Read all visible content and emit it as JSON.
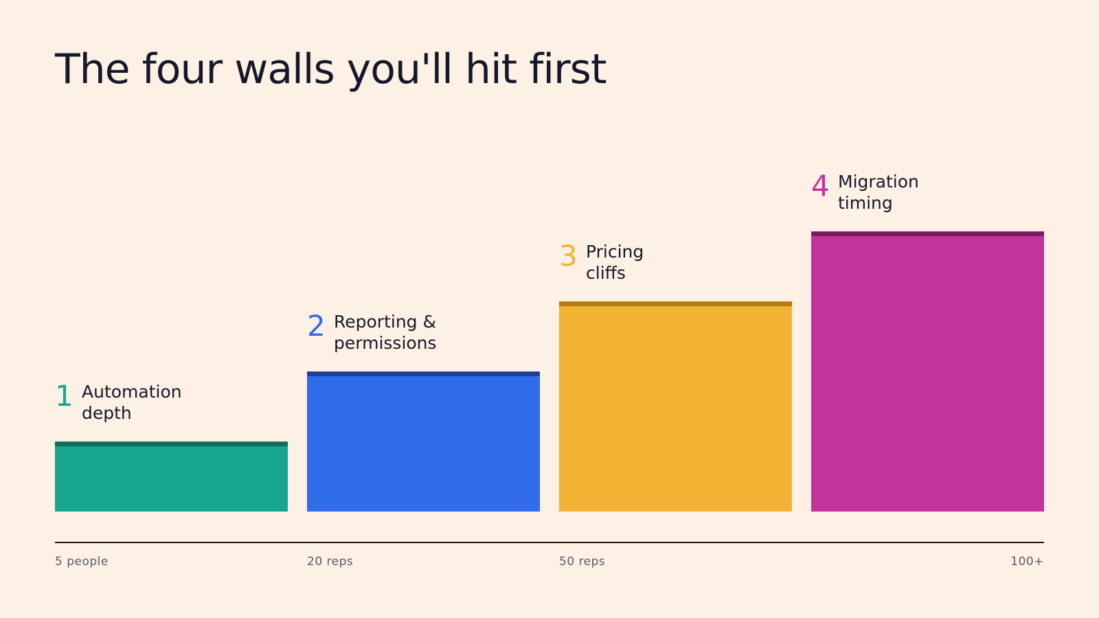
{
  "title": "The four walls you'll hit first",
  "chart_data": {
    "type": "bar",
    "title": "The four walls you'll hit first",
    "categories": [
      "Automation depth",
      "Reporting & permissions",
      "Pricing cliffs",
      "Migration timing"
    ],
    "bars": [
      {
        "number": "1",
        "label_lines": [
          "Automation",
          "depth"
        ],
        "value": 1,
        "color": "#17a58e",
        "cap_color": "#0f6e5c"
      },
      {
        "number": "2",
        "label_lines": [
          "Reporting &",
          "permissions"
        ],
        "value": 2,
        "color": "#316cea",
        "cap_color": "#1e3f97"
      },
      {
        "number": "3",
        "label_lines": [
          "Pricing",
          "cliffs"
        ],
        "value": 3,
        "color": "#f2b335",
        "cap_color": "#b57c10"
      },
      {
        "number": "4",
        "label_lines": [
          "Migration",
          "timing"
        ],
        "value": 4,
        "color": "#c2349a",
        "cap_color": "#7b1c5f"
      }
    ],
    "number_colors": [
      "#17a58e",
      "#316cea",
      "#f2b335",
      "#c2349a"
    ],
    "x_ticks": [
      "5 people",
      "20 reps",
      "50 reps",
      "100+"
    ],
    "ylim": [
      0,
      4.4
    ],
    "grid": false,
    "legend": "none"
  }
}
